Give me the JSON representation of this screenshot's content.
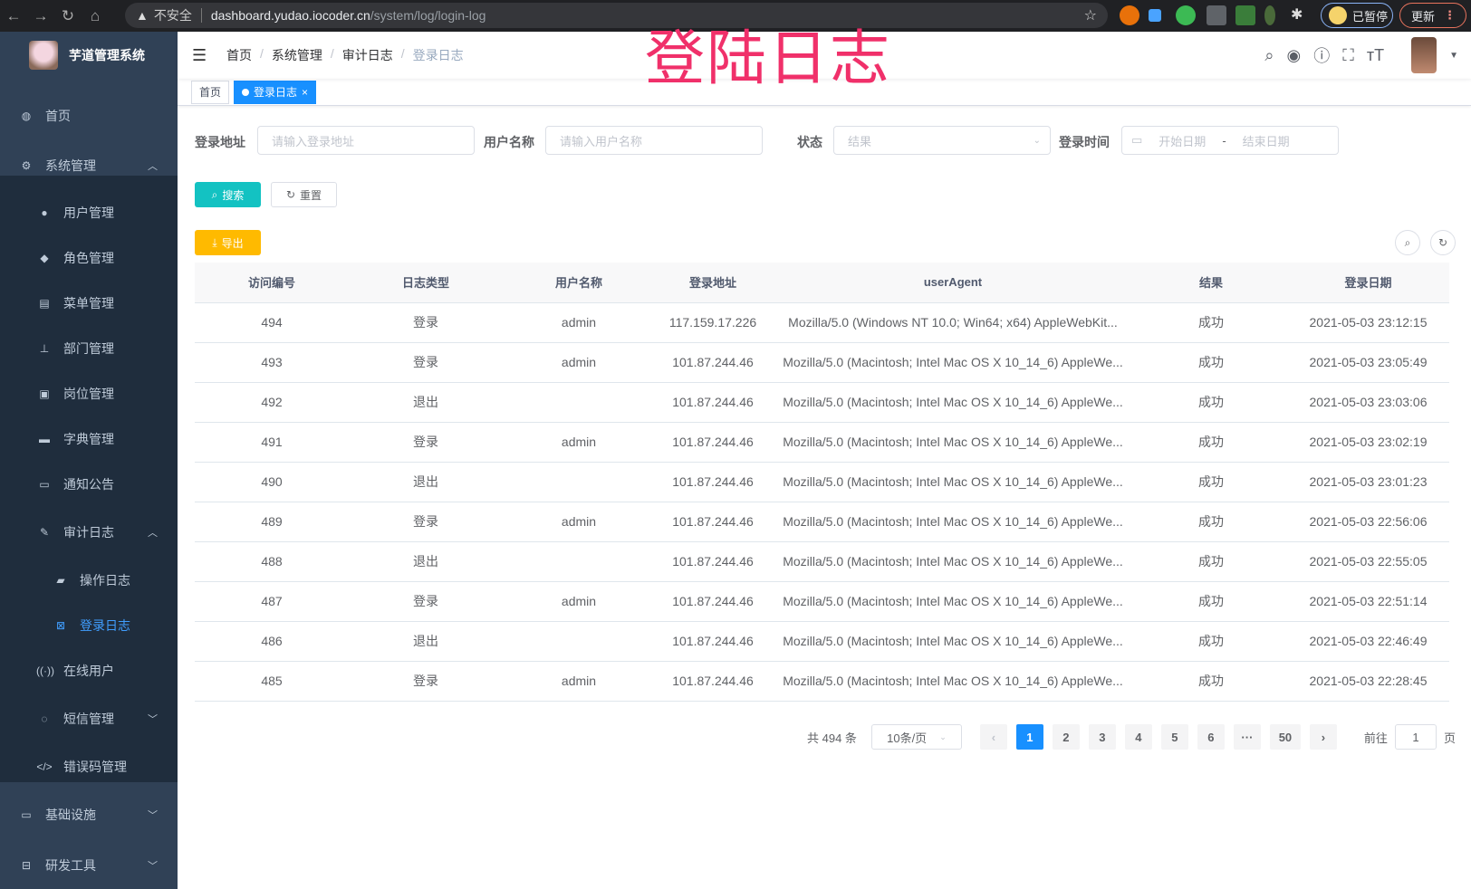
{
  "browser": {
    "warning": "不安全",
    "host": "dashboard.yudao.iocoder.cn",
    "path": "/system/log/login-log",
    "paused_label": "已暂停",
    "update_label": "更新"
  },
  "overlay_title": "登陆日志",
  "sidebar": {
    "app_title": "芋道管理系统",
    "items": [
      {
        "label": "首页",
        "icon": "dashboard-icon"
      },
      {
        "label": "系统管理",
        "icon": "gear-icon",
        "expanded": true
      },
      {
        "label": "用户管理",
        "icon": "user-icon"
      },
      {
        "label": "角色管理",
        "icon": "peoples-icon"
      },
      {
        "label": "菜单管理",
        "icon": "tree-table-icon"
      },
      {
        "label": "部门管理",
        "icon": "tree-icon"
      },
      {
        "label": "岗位管理",
        "icon": "post-icon"
      },
      {
        "label": "字典管理",
        "icon": "dict-icon"
      },
      {
        "label": "通知公告",
        "icon": "message-icon"
      },
      {
        "label": "审计日志",
        "icon": "log-icon",
        "expanded": true
      },
      {
        "label": "操作日志",
        "icon": "form-icon"
      },
      {
        "label": "登录日志",
        "icon": "logininfor-icon",
        "active": true
      },
      {
        "label": "在线用户",
        "icon": "online-icon"
      },
      {
        "label": "短信管理",
        "icon": "validcode-icon"
      },
      {
        "label": "错误码管理",
        "icon": "code-icon"
      },
      {
        "label": "基础设施",
        "icon": "monitor-icon"
      },
      {
        "label": "研发工具",
        "icon": "tool-icon"
      }
    ]
  },
  "breadcrumb": [
    "首页",
    "系统管理",
    "审计日志",
    "登录日志"
  ],
  "tags": [
    {
      "label": "首页"
    },
    {
      "label": "登录日志",
      "active": true
    }
  ],
  "filters": {
    "address_label": "登录地址",
    "address_placeholder": "请输入登录地址",
    "username_label": "用户名称",
    "username_placeholder": "请输入用户名称",
    "status_label": "状态",
    "status_placeholder": "结果",
    "time_label": "登录时间",
    "start_placeholder": "开始日期",
    "range_sep": "-",
    "end_placeholder": "结束日期"
  },
  "buttons": {
    "search": "搜索",
    "reset": "重置",
    "export": "导出"
  },
  "table": {
    "columns": [
      "访问编号",
      "日志类型",
      "用户名称",
      "登录地址",
      "userAgent",
      "结果",
      "登录日期"
    ],
    "rows": [
      [
        "494",
        "登录",
        "admin",
        "117.159.17.226",
        "Mozilla/5.0 (Windows NT 10.0; Win64; x64) AppleWebKit...",
        "成功",
        "2021-05-03 23:12:15"
      ],
      [
        "493",
        "登录",
        "admin",
        "101.87.244.46",
        "Mozilla/5.0 (Macintosh; Intel Mac OS X 10_14_6) AppleWe...",
        "成功",
        "2021-05-03 23:05:49"
      ],
      [
        "492",
        "退出",
        "",
        "101.87.244.46",
        "Mozilla/5.0 (Macintosh; Intel Mac OS X 10_14_6) AppleWe...",
        "成功",
        "2021-05-03 23:03:06"
      ],
      [
        "491",
        "登录",
        "admin",
        "101.87.244.46",
        "Mozilla/5.0 (Macintosh; Intel Mac OS X 10_14_6) AppleWe...",
        "成功",
        "2021-05-03 23:02:19"
      ],
      [
        "490",
        "退出",
        "",
        "101.87.244.46",
        "Mozilla/5.0 (Macintosh; Intel Mac OS X 10_14_6) AppleWe...",
        "成功",
        "2021-05-03 23:01:23"
      ],
      [
        "489",
        "登录",
        "admin",
        "101.87.244.46",
        "Mozilla/5.0 (Macintosh; Intel Mac OS X 10_14_6) AppleWe...",
        "成功",
        "2021-05-03 22:56:06"
      ],
      [
        "488",
        "退出",
        "",
        "101.87.244.46",
        "Mozilla/5.0 (Macintosh; Intel Mac OS X 10_14_6) AppleWe...",
        "成功",
        "2021-05-03 22:55:05"
      ],
      [
        "487",
        "登录",
        "admin",
        "101.87.244.46",
        "Mozilla/5.0 (Macintosh; Intel Mac OS X 10_14_6) AppleWe...",
        "成功",
        "2021-05-03 22:51:14"
      ],
      [
        "486",
        "退出",
        "",
        "101.87.244.46",
        "Mozilla/5.0 (Macintosh; Intel Mac OS X 10_14_6) AppleWe...",
        "成功",
        "2021-05-03 22:46:49"
      ],
      [
        "485",
        "登录",
        "admin",
        "101.87.244.46",
        "Mozilla/5.0 (Macintosh; Intel Mac OS X 10_14_6) AppleWe...",
        "成功",
        "2021-05-03 22:28:45"
      ]
    ]
  },
  "pagination": {
    "total": "共 494 条",
    "page_size": "10条/页",
    "pages": [
      "1",
      "2",
      "3",
      "4",
      "5",
      "6",
      "···",
      "50"
    ],
    "current": "1",
    "goto_label": "前往",
    "goto_value": "1",
    "goto_suffix": "页"
  },
  "colors": {
    "sidebar": "#304156",
    "submenu": "#1f2d3d",
    "primary": "#1890ff",
    "search": "#13c2c2",
    "export": "#ffba00",
    "overlay": "#f0306a"
  }
}
